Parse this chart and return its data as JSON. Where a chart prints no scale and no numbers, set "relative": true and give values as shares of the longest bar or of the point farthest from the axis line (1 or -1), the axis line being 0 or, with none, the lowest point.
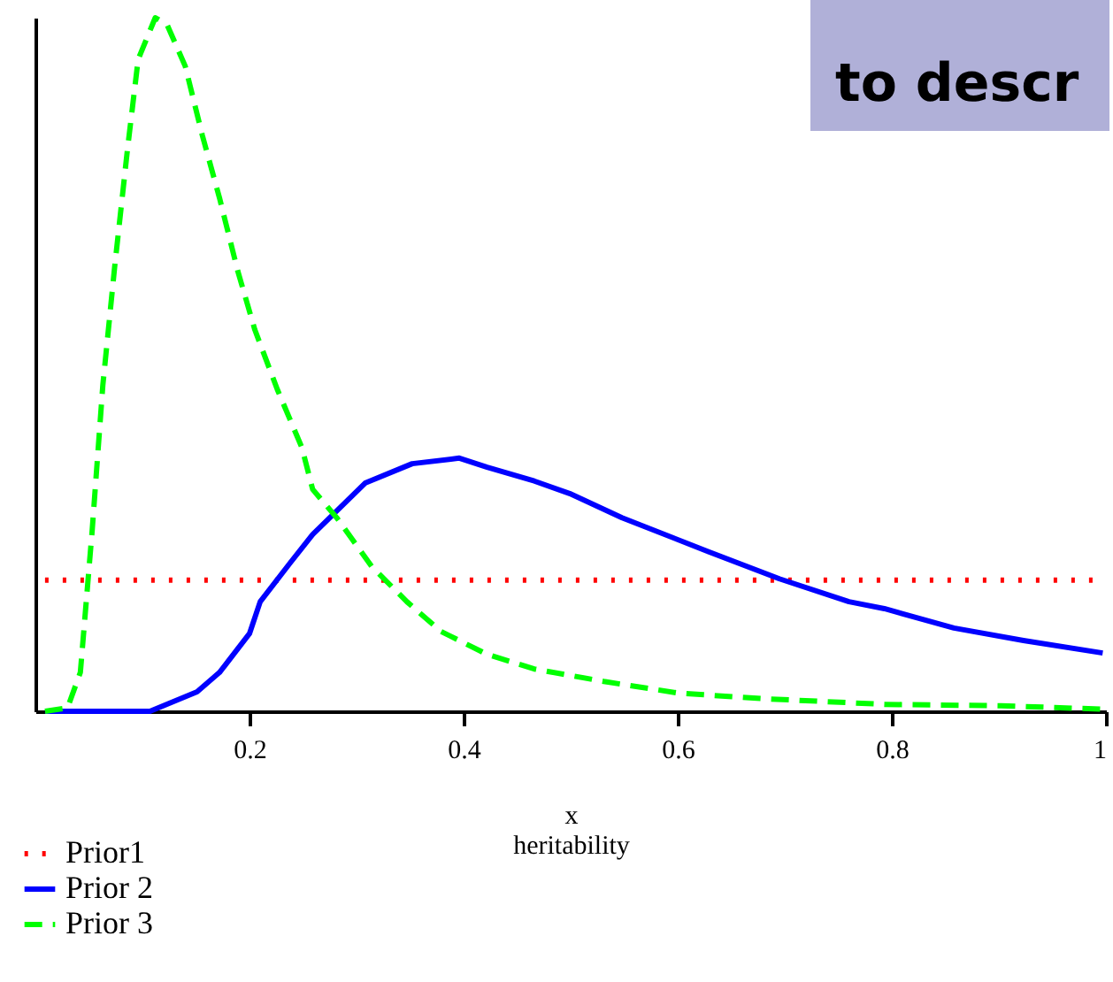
{
  "chart_data": {
    "type": "line",
    "relative": true,
    "xlabel": "x\nheritability",
    "xlim": [
      0,
      1
    ],
    "xticks": [
      0.2,
      0.4,
      0.6,
      0.8,
      1
    ],
    "grid": false,
    "legend": "bottom",
    "marker": "none",
    "annotations": [
      "to descr"
    ],
    "series": [
      {
        "name": "Prior1",
        "color": "#ff0000",
        "line_style": "dotted",
        "x": [
          0.009,
          1.0
        ],
        "values": [
          0.189,
          0.189
        ]
      },
      {
        "name": "Prior 2",
        "color": "#0000ff",
        "line_style": "solid",
        "x": [
          0.009,
          0.107,
          0.151,
          0.172,
          0.2,
          0.21,
          0.238,
          0.259,
          0.308,
          0.352,
          0.396,
          0.422,
          0.466,
          0.499,
          0.548,
          0.629,
          0.695,
          0.76,
          0.793,
          0.858,
          0.923,
          0.997
        ],
        "values": [
          0,
          0,
          0.028,
          0.056,
          0.112,
          0.158,
          0.214,
          0.255,
          0.329,
          0.357,
          0.365,
          0.352,
          0.332,
          0.314,
          0.279,
          0.23,
          0.191,
          0.158,
          0.148,
          0.12,
          0.102,
          0.084
        ]
      },
      {
        "name": "Prior 3",
        "color": "#00ff00",
        "line_style": "dashed",
        "x": [
          0.009,
          0.03,
          0.042,
          0.053,
          0.063,
          0.074,
          0.086,
          0.096,
          0.112,
          0.123,
          0.14,
          0.156,
          0.172,
          0.189,
          0.205,
          0.226,
          0.249,
          0.259,
          0.282,
          0.314,
          0.347,
          0.379,
          0.422,
          0.466,
          0.531,
          0.602,
          0.683,
          0.793,
          0.902,
          0.997
        ],
        "values": [
          0,
          0.005,
          0.056,
          0.26,
          0.47,
          0.64,
          0.81,
          0.94,
          1.0,
          0.99,
          0.93,
          0.83,
          0.74,
          0.635,
          0.55,
          0.464,
          0.38,
          0.32,
          0.278,
          0.209,
          0.158,
          0.115,
          0.082,
          0.061,
          0.043,
          0.026,
          0.018,
          0.01,
          0.008,
          0.003
        ]
      }
    ]
  }
}
